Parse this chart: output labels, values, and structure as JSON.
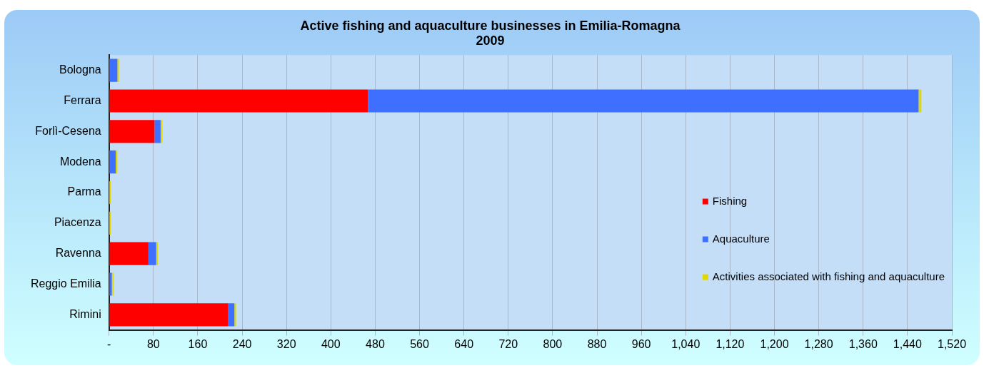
{
  "chart_data": {
    "type": "bar",
    "orientation": "horizontal",
    "stacked": true,
    "title": "Active fishing and aquaculture businesses in Emilia-Romagna\n2009",
    "categories": [
      "Bologna",
      "Ferrara",
      "Forlì-Cesena",
      "Modena",
      "Parma",
      "Piacenza",
      "Ravenna",
      "Reggio Emilia",
      "Rimini"
    ],
    "series": [
      {
        "name": "Fishing",
        "color": "#ff0000",
        "values": [
          0,
          467,
          82,
          0,
          0,
          0,
          71,
          0,
          215
        ]
      },
      {
        "name": "Aquaculture",
        "color": "#3f6fff",
        "values": [
          15,
          993,
          11,
          12,
          0,
          0,
          14,
          5,
          11
        ]
      },
      {
        "name": "Activities associated with fishing and aquaculture",
        "color": "#e0d800",
        "values": [
          3,
          5,
          3,
          3,
          3,
          3,
          3,
          3,
          3
        ]
      }
    ],
    "xlim": [
      0,
      1520
    ],
    "xticks": [
      {
        "value": 0,
        "label": "-"
      },
      80,
      160,
      240,
      320,
      400,
      480,
      560,
      640,
      720,
      800,
      880,
      960,
      {
        "value": 1040,
        "label": "1,040"
      },
      {
        "value": 1120,
        "label": "1,120"
      },
      {
        "value": 1200,
        "label": "1,200"
      },
      {
        "value": 1280,
        "label": "1,280"
      },
      {
        "value": 1360,
        "label": "1,360"
      },
      {
        "value": 1440,
        "label": "1,440"
      },
      {
        "value": 1520,
        "label": "1,520"
      }
    ],
    "grid": "x",
    "legend": "right"
  }
}
